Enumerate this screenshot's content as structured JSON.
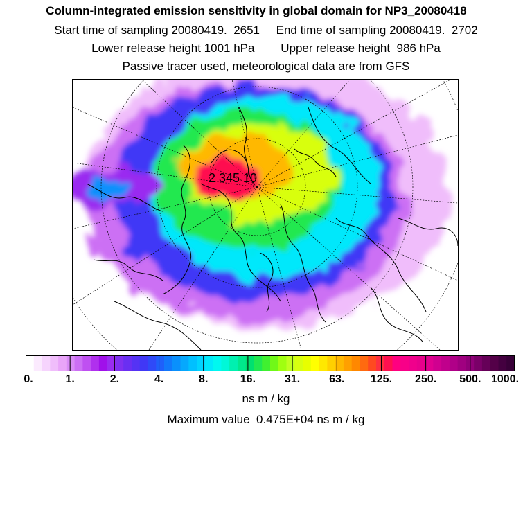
{
  "title": {
    "line1": "Column-integrated emission sensitivity in global domain for NP3_20080418",
    "line2": "Start time of sampling 20080419.  2651     End time of sampling 20080419.  2702",
    "line3": "Lower release height 1001 hPa        Upper release height  986 hPa",
    "line4": "Passive tracer used, meteorological data are from GFS"
  },
  "chart_data": {
    "type": "heatmap",
    "projection": "north polar stereographic",
    "colorbar": {
      "unit": "ns m / kg",
      "scale": "logarithmic",
      "tick_labels": [
        "0.",
        "1.",
        "2.",
        "4.",
        "8.",
        "16.",
        "31.",
        "63.",
        "125.",
        "250.",
        "500.",
        "1000."
      ],
      "colors": [
        "#ffffff",
        "#fbeafe",
        "#f6d4fd",
        "#f0bdfb",
        "#e9a5f9",
        "#d98cf6",
        "#cc6ff4",
        "#bf50f1",
        "#b030ee",
        "#a010ea",
        "#9a2cf0",
        "#8030f0",
        "#6a2ff2",
        "#5533f4",
        "#4038f6",
        "#2f4af8",
        "#1f60fa",
        "#1278fb",
        "#0a90fc",
        "#06a8fd",
        "#00c0ff",
        "#00d4ff",
        "#00e8fb",
        "#00f8f0",
        "#00f8d8",
        "#00f0b0",
        "#00e88c",
        "#00e070",
        "#20e850",
        "#40f030",
        "#70f818",
        "#a0ff10",
        "#c0ff20",
        "#d8ff10",
        "#e8ff00",
        "#ffff00",
        "#ffe800",
        "#ffd000",
        "#ffb800",
        "#ffa000",
        "#ff8800",
        "#ff6a10",
        "#ff4a20",
        "#ff3040",
        "#ff1050",
        "#ff0080",
        "#f80088",
        "#f0008c",
        "#e8008c",
        "#e00090",
        "#d00090",
        "#c0008c",
        "#b00088",
        "#a00080",
        "#900078",
        "#7a0068",
        "#660058",
        "#540048",
        "#440040",
        "#380038"
      ],
      "minor_bins_per_decade_tick": 5
    },
    "emission_field": [
      {
        "x": 0.5,
        "y": 0.42,
        "rx": 0.48,
        "ry": 0.5,
        "level": 3
      },
      {
        "x": 0.45,
        "y": 0.45,
        "rx": 0.42,
        "ry": 0.44,
        "level": 6
      },
      {
        "x": 0.47,
        "y": 0.42,
        "rx": 0.36,
        "ry": 0.4,
        "level": 14
      },
      {
        "x": 0.5,
        "y": 0.4,
        "rx": 0.3,
        "ry": 0.34,
        "level": 22
      },
      {
        "x": 0.45,
        "y": 0.37,
        "rx": 0.24,
        "ry": 0.26,
        "level": 28
      },
      {
        "x": 0.48,
        "y": 0.34,
        "rx": 0.2,
        "ry": 0.18,
        "level": 33
      },
      {
        "x": 0.42,
        "y": 0.33,
        "rx": 0.14,
        "ry": 0.12,
        "level": 38
      },
      {
        "x": 0.4,
        "y": 0.37,
        "rx": 0.09,
        "ry": 0.08,
        "level": 44
      },
      {
        "x": 0.1,
        "y": 0.4,
        "rx": 0.12,
        "ry": 0.07,
        "level": 10
      },
      {
        "x": 0.1,
        "y": 0.4,
        "rx": 0.07,
        "ry": 0.04,
        "level": 18
      }
    ],
    "station_label": "2 345 10"
  },
  "maximum": {
    "text": "Maximum value  0.475E+04 ns m / kg"
  }
}
